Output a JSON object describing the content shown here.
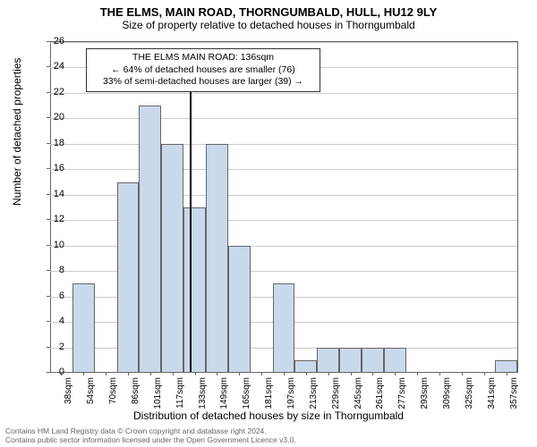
{
  "title": "THE ELMS, MAIN ROAD, THORNGUMBALD, HULL, HU12 9LY",
  "subtitle": "Size of property relative to detached houses in Thorngumbald",
  "y_label": "Number of detached properties",
  "x_label": "Distribution of detached houses by size in Thorngumbald",
  "chart": {
    "type": "histogram",
    "y_min": 0,
    "y_max": 26,
    "y_tick_step": 2,
    "bar_fill": "#cad8ec",
    "bar_border": "#666666",
    "grid_color": "#cccccc",
    "background_color": "#ffffff",
    "x_labels": [
      "38sqm",
      "54sqm",
      "70sqm",
      "86sqm",
      "101sqm",
      "117sqm",
      "133sqm",
      "149sqm",
      "165sqm",
      "181sqm",
      "197sqm",
      "213sqm",
      "229sqm",
      "245sqm",
      "261sqm",
      "277sqm",
      "293sqm",
      "309sqm",
      "325sqm",
      "341sqm",
      "357sqm"
    ],
    "bars": [
      0,
      7,
      0,
      15,
      21,
      18,
      13,
      18,
      10,
      0,
      7,
      1,
      2,
      2,
      2,
      2,
      0,
      0,
      0,
      0,
      1
    ]
  },
  "marker": {
    "x_value_sqm": 136,
    "x_range_start": 38,
    "x_range_end": 365
  },
  "callout": {
    "line1": "THE ELMS MAIN ROAD: 136sqm",
    "line2": "← 64% of detached houses are smaller (76)",
    "line3": "33% of semi-detached houses are larger (39) →"
  },
  "footer": {
    "line1": "Contains HM Land Registry data © Crown copyright and database right 2024.",
    "line2": "Contains public sector information licensed under the Open Government Licence v3.0."
  }
}
